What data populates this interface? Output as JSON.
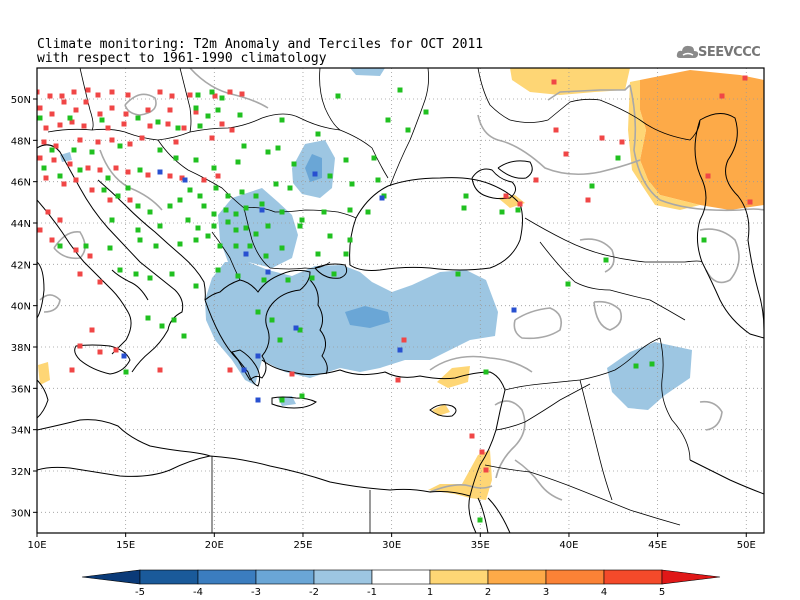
{
  "title": {
    "line1": "Climate monitoring: T2m Anomaly and Terciles for OCT 2011",
    "line2": "with respect to 1961-1990 climatology"
  },
  "logo": {
    "text": "SEEVCCC",
    "icon": "cloud-icon"
  },
  "map": {
    "lon_range": [
      10,
      51
    ],
    "lat_range": [
      29,
      51.5
    ],
    "lon_ticks": [
      {
        "value": 10,
        "label": "10E"
      },
      {
        "value": 15,
        "label": "15E"
      },
      {
        "value": 20,
        "label": "20E"
      },
      {
        "value": 25,
        "label": "25E"
      },
      {
        "value": 30,
        "label": "30E"
      },
      {
        "value": 35,
        "label": "35E"
      },
      {
        "value": 40,
        "label": "40E"
      },
      {
        "value": 45,
        "label": "45E"
      },
      {
        "value": 50,
        "label": "50E"
      }
    ],
    "lat_ticks": [
      {
        "value": 30,
        "label": "30N"
      },
      {
        "value": 32,
        "label": "32N"
      },
      {
        "value": 34,
        "label": "34N"
      },
      {
        "value": 36,
        "label": "36N"
      },
      {
        "value": 38,
        "label": "38N"
      },
      {
        "value": 40,
        "label": "40N"
      },
      {
        "value": 42,
        "label": "42N"
      },
      {
        "value": 44,
        "label": "44N"
      },
      {
        "value": 46,
        "label": "46N"
      },
      {
        "value": 48,
        "label": "48N"
      },
      {
        "value": 50,
        "label": "50N"
      }
    ],
    "colors": {
      "land": "#000000",
      "border": "#000000",
      "contour": "#a8a8a8",
      "grid": "#9a9a9a",
      "above_tercile": "#f04646",
      "normal_tercile": "#20c020",
      "below_tercile": "#2850d0"
    },
    "colorbar": {
      "labels": [
        "-5",
        "-4",
        "-3",
        "-2",
        "-1",
        "1",
        "2",
        "3",
        "4",
        "5"
      ],
      "colors": [
        "#1a5a9a",
        "#3b7dbf",
        "#6aa6d6",
        "#9dc6e2",
        "#ffffff",
        "#fed675",
        "#fdaa48",
        "#fb8236",
        "#f44a2a"
      ],
      "under_color": "#0a3a78",
      "over_color": "#e01818"
    }
  }
}
